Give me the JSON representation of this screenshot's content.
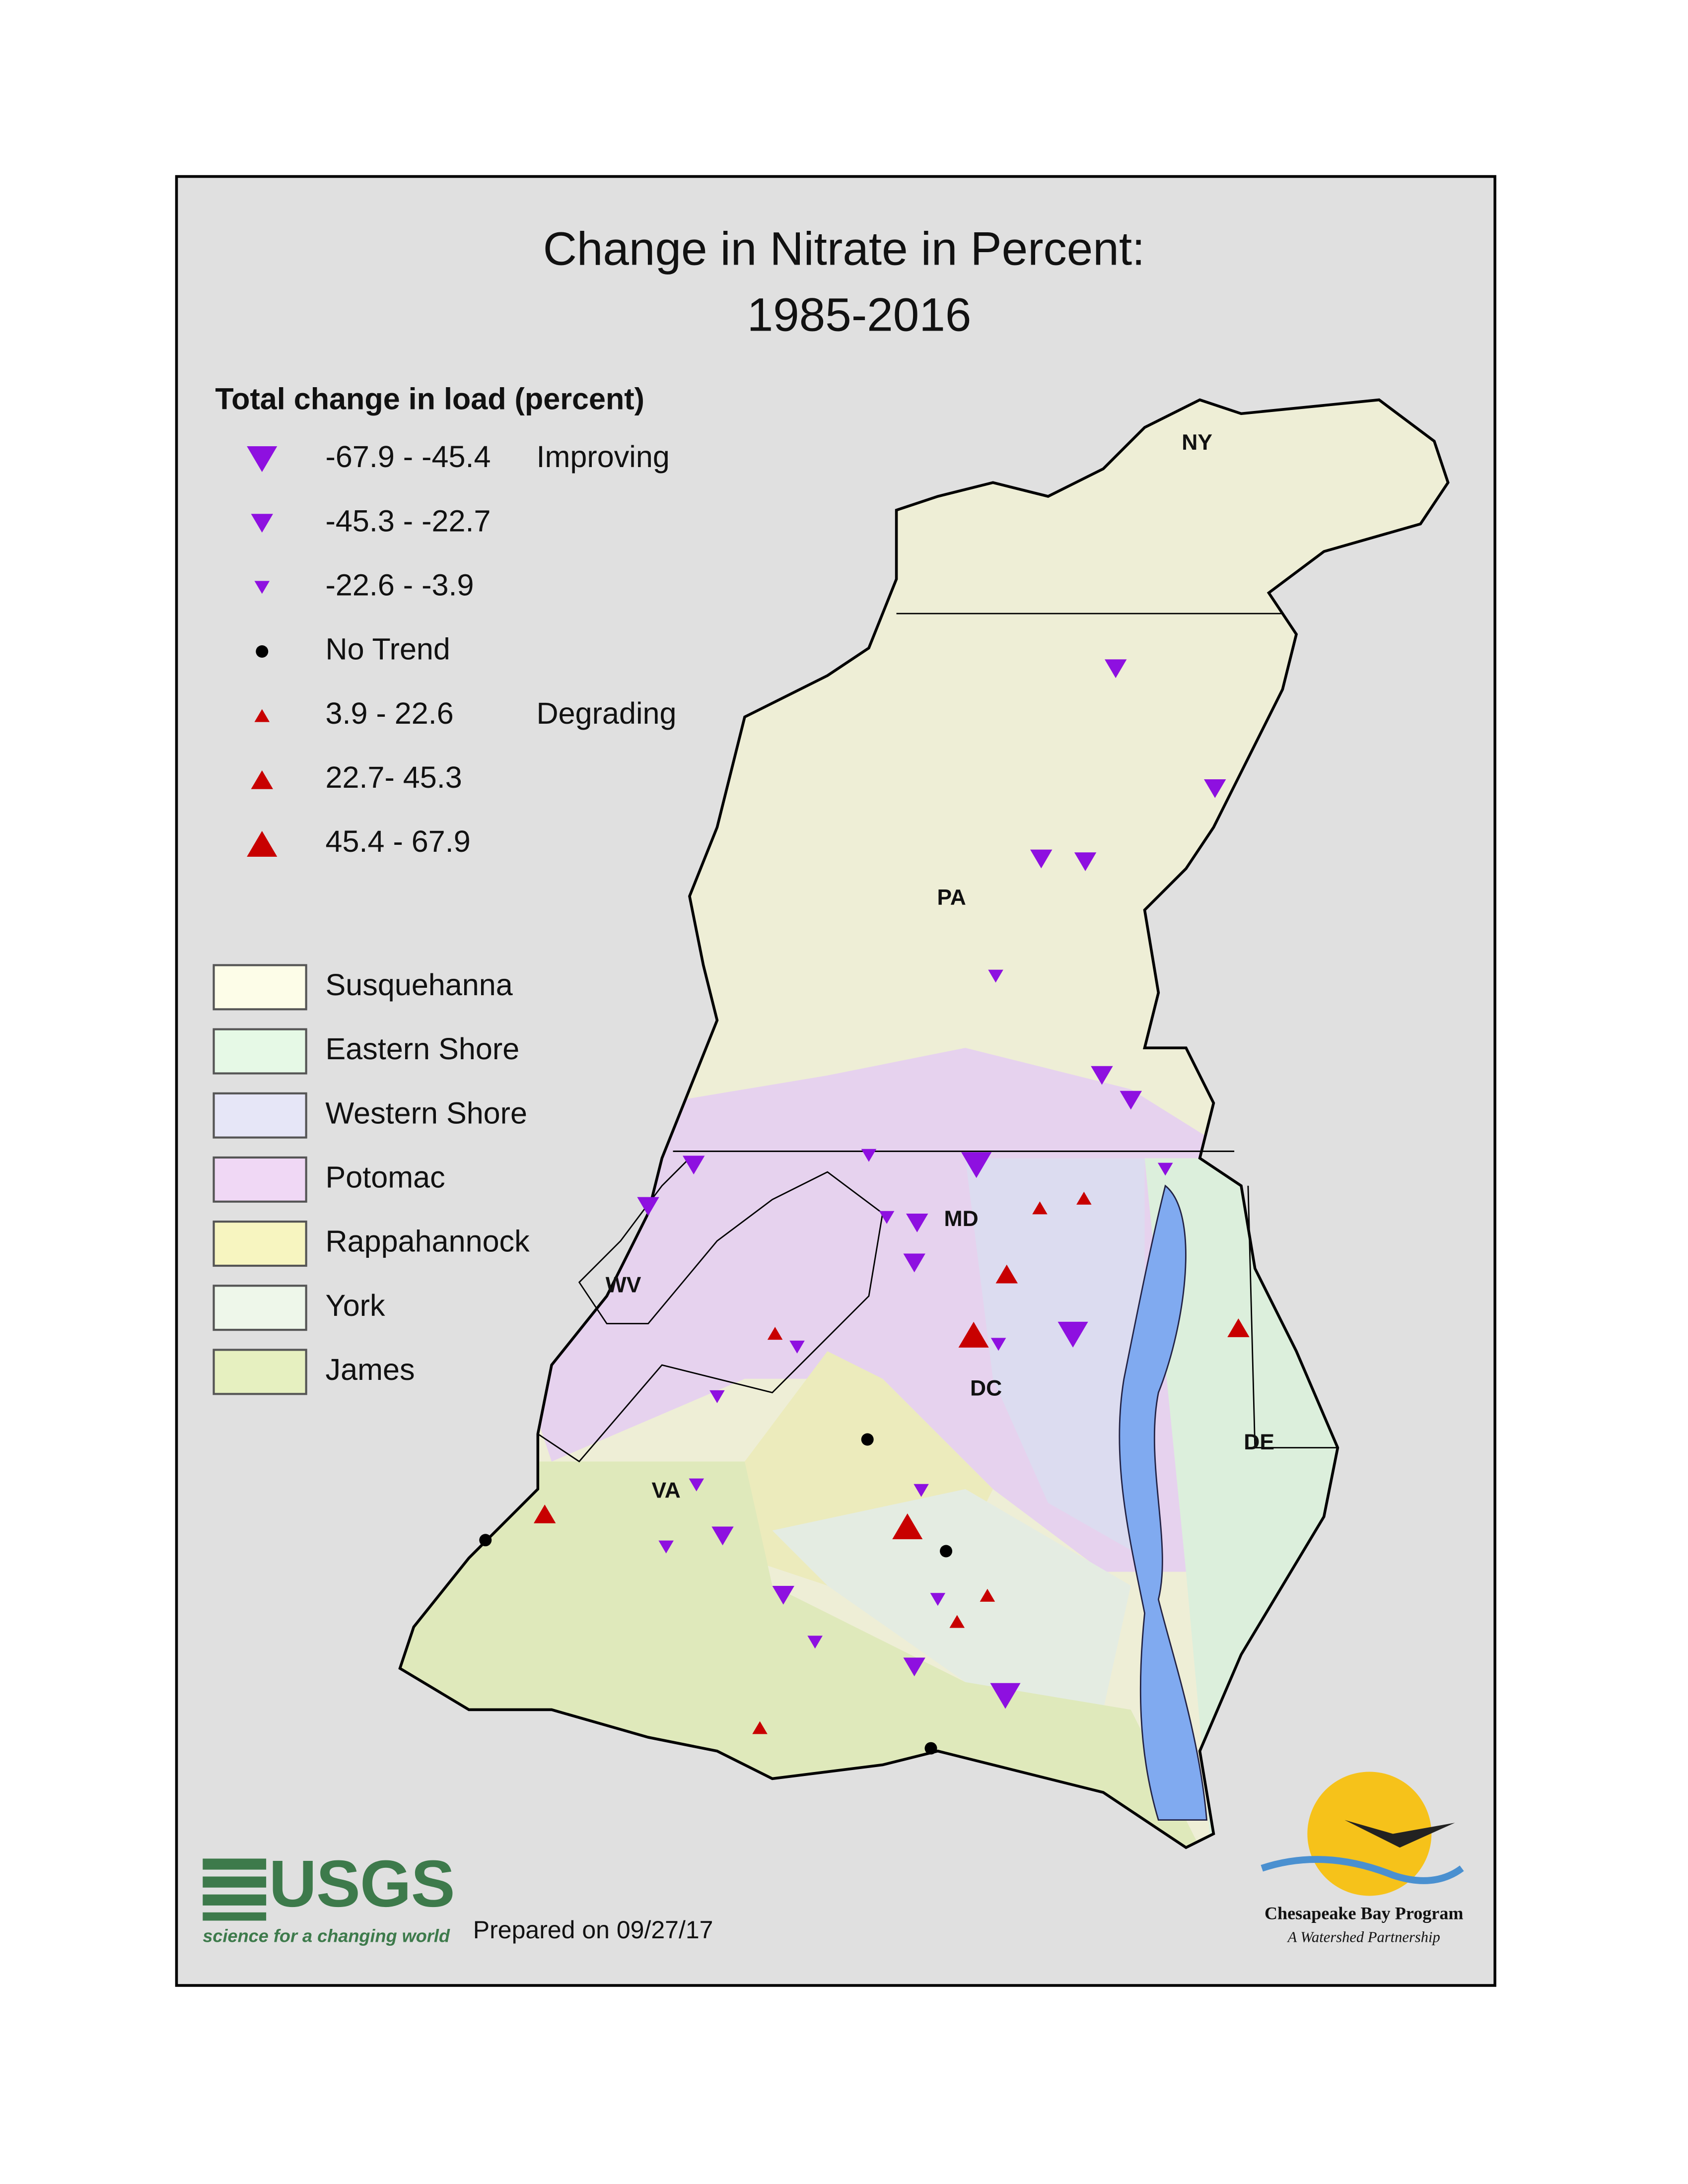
{
  "title": [
    "Change in Nitrate in Percent:",
    "1985-2016"
  ],
  "trend_legend": {
    "heading": "Total change in load (percent)",
    "items": [
      {
        "range": "-67.9 - -45.4",
        "note": "Improving"
      },
      {
        "range": "-45.3 - -22.7"
      },
      {
        "range": "-22.6 - -3.9"
      },
      {
        "range": "No Trend"
      },
      {
        "range": "3.9 - 22.6",
        "note": "Degrading"
      },
      {
        "range": "22.7- 45.3"
      },
      {
        "range": "45.4 - 67.9"
      }
    ]
  },
  "basin_legend": [
    "Susquehanna",
    "Eastern Shore",
    "Western Shore",
    "Potomac",
    "Rappahannock",
    "York",
    "James"
  ],
  "state_labels": [
    "NY",
    "PA",
    "MD",
    "WV",
    "DC",
    "DE",
    "VA"
  ],
  "footer": {
    "usgs_logo": "USGS",
    "usgs_tagline": "science for a changing world",
    "prepared": "Prepared on 09/27/17",
    "cbp_name": "Chesapeake Bay Program",
    "cbp_tagline": "A Watershed Partnership"
  }
}
